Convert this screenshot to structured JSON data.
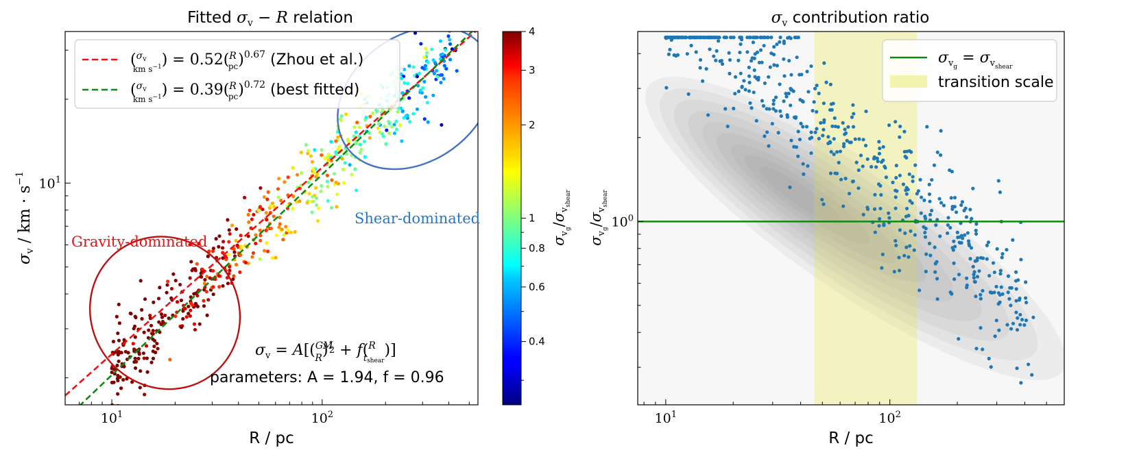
{
  "chart_data": [
    {
      "type": "scatter",
      "title": "Fitted σv − R relation",
      "xlabel": "R / pc",
      "ylabel": "σv / km·s⁻¹",
      "xscale": "log",
      "yscale": "log",
      "xlim": [
        6,
        550
      ],
      "ylim": [
        1.6,
        35
      ],
      "x_ticks": [
        {
          "value": 10,
          "label": "10¹"
        },
        {
          "value": 100,
          "label": "10²"
        }
      ],
      "y_ticks": [
        {
          "value": 10,
          "label": "10¹"
        }
      ],
      "series": [
        {
          "name": "(σv/km s⁻¹) = 0.52(R/pc)^0.67 (Zhou et al.)",
          "kind": "dashed-line",
          "color": "#ee1111",
          "coef": 0.52,
          "exp": 0.67
        },
        {
          "name": "(σv/km s⁻¹) = 0.39(R/pc)^0.72 (best fitted)",
          "kind": "dashed-line",
          "color": "#118811",
          "coef": 0.39,
          "exp": 0.72
        },
        {
          "name": "clouds",
          "kind": "scatter",
          "color_by": "σvg/σvshear",
          "n_points": 600,
          "x_range": [
            10,
            430
          ]
        }
      ],
      "legend": [
        "(σv/km s⁻¹) = 0.52(R/pc)^0.67 (Zhou et al.)",
        "(σv/km s⁻¹) = 0.39(R/pc)^0.72 (best fitted)"
      ],
      "legend_position": "top-left",
      "annotations": [
        {
          "text": "Gravity-dominated",
          "color": "#ee1111"
        },
        {
          "text": "Shear-dominated",
          "color": "#2277cc"
        },
        {
          "text": "σv = A[(GM/R)^½ + f(R/tshear)]",
          "color": "#000000"
        },
        {
          "text": "parameters: A = 1.94, f = 0.96",
          "color": "#000000"
        }
      ],
      "regions": [
        {
          "name": "gravity-dominated-ellipse",
          "color": "#bb1111",
          "x_range": [
            8,
            40
          ],
          "y_range": [
            1.8,
            6.5
          ]
        },
        {
          "name": "shear-dominated-ellipse",
          "color": "#4472c4",
          "x_range": [
            110,
            700
          ],
          "y_range": [
            12,
            34
          ]
        }
      ],
      "colorbar": {
        "label": "σvg/σvshear",
        "scale": "log",
        "range": [
          0.25,
          4
        ],
        "colormap": "jet",
        "ticks": [
          {
            "value": 0.4,
            "label": "0.4"
          },
          {
            "value": 0.6,
            "label": "0.6"
          },
          {
            "value": 0.8,
            "label": "0.8"
          },
          {
            "value": 1,
            "label": "1"
          },
          {
            "value": 2,
            "label": "2"
          },
          {
            "value": 3,
            "label": "3"
          },
          {
            "value": 4,
            "label": "4"
          }
        ]
      }
    },
    {
      "type": "scatter",
      "title": "σv contribution ratio",
      "xlabel": "R / pc",
      "ylabel": "σvg/σvshear",
      "xscale": "log",
      "yscale": "log",
      "xlim": [
        7.5,
        600
      ],
      "ylim": [
        0.22,
        4.8
      ],
      "x_ticks": [
        {
          "value": 10,
          "label": "10¹"
        },
        {
          "value": 100,
          "label": "10²"
        }
      ],
      "y_ticks": [
        {
          "value": 1,
          "label": "10⁰"
        }
      ],
      "series": [
        {
          "name": "σvg = σvshear",
          "kind": "hline",
          "y": 1,
          "color": "#118811"
        },
        {
          "name": "clouds",
          "kind": "scatter",
          "color": "#1f77b4",
          "n_points": 600,
          "x_range": [
            10,
            460
          ]
        },
        {
          "name": "kde-density",
          "kind": "contour",
          "color": "#808080"
        }
      ],
      "transition_scale": {
        "label": "transition scale",
        "x_range": [
          46,
          132
        ],
        "color": "#f5f5b3"
      },
      "legend": [
        "σvg = σvshear",
        "transition scale"
      ],
      "legend_position": "top-right"
    }
  ]
}
